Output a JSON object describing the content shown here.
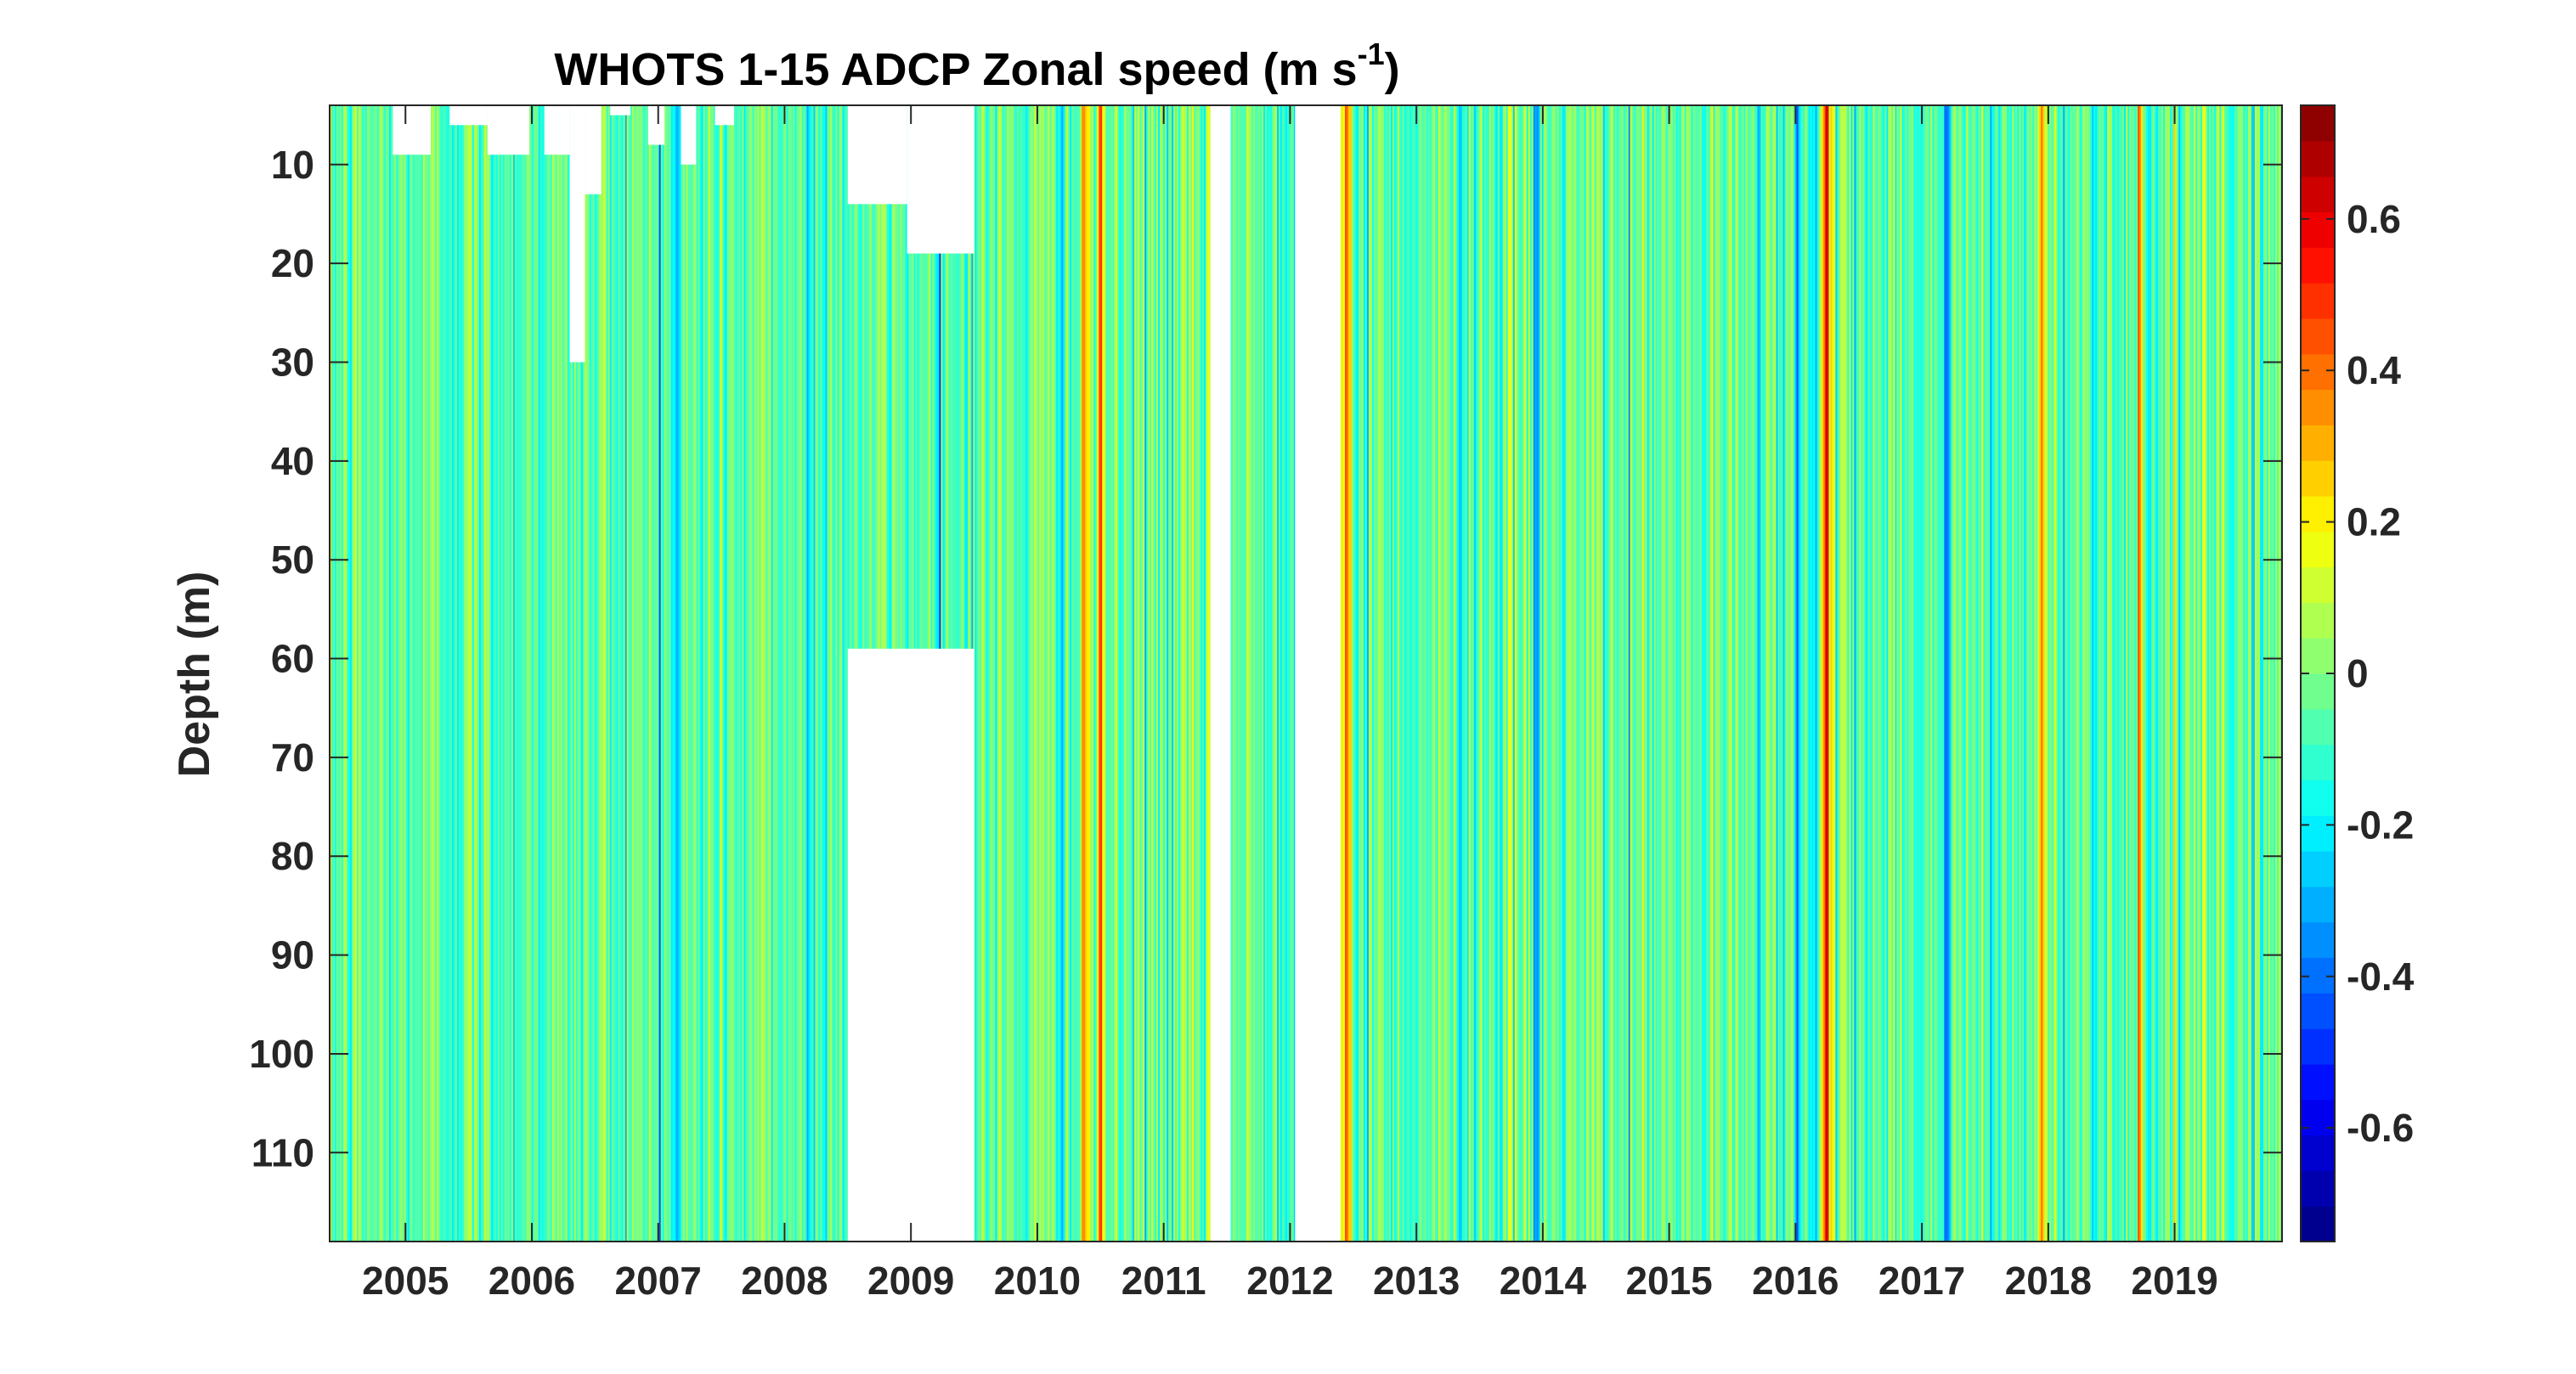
{
  "chart_data": {
    "type": "heatmap",
    "title": "WHOTS 1-15 ADCP Zonal speed (m s",
    "title_superscript": "-1",
    "title_suffix": ")",
    "xlabel": "",
    "ylabel": "Depth (m)",
    "x_range_years": [
      2004.4,
      2019.85
    ],
    "y_range_m": [
      4,
      119
    ],
    "y_reversed": true,
    "x_tick_labels": [
      "2005",
      "2006",
      "2007",
      "2008",
      "2009",
      "2010",
      "2011",
      "2012",
      "2013",
      "2014",
      "2015",
      "2016",
      "2017",
      "2018",
      "2019"
    ],
    "x_tick_values": [
      2005,
      2006,
      2007,
      2008,
      2009,
      2010,
      2011,
      2012,
      2013,
      2014,
      2015,
      2016,
      2017,
      2018,
      2019
    ],
    "y_tick_labels": [
      "10",
      "20",
      "30",
      "40",
      "50",
      "60",
      "70",
      "80",
      "90",
      "100",
      "110"
    ],
    "y_tick_values": [
      10,
      20,
      30,
      40,
      50,
      60,
      70,
      80,
      90,
      100,
      110
    ],
    "colorbar": {
      "range": [
        -0.75,
        0.75
      ],
      "tick_labels": [
        "0.6",
        "0.4",
        "0.2",
        "0",
        "-0.2",
        "-0.4",
        "-0.6"
      ],
      "tick_values": [
        0.6,
        0.4,
        0.2,
        0,
        -0.2,
        -0.4,
        -0.6
      ],
      "colormap": "jet",
      "levels": 32
    },
    "data_gaps_years": [
      [
        2008.5,
        2009.5
      ],
      [
        2011.37,
        2011.53
      ],
      [
        2012.04,
        2012.4
      ]
    ],
    "mask_2009_top_m": 59,
    "shallow_mask_2008_top_m": 14,
    "shallow_mask_2009_top_m": 19,
    "prominent_bands": [
      {
        "year": 2010.5,
        "value": 0.5
      },
      {
        "year": 2010.38,
        "value": 0.3
      },
      {
        "year": 2012.45,
        "value": 0.42
      },
      {
        "year": 2016.25,
        "value": 0.55
      },
      {
        "year": 2017.95,
        "value": 0.4
      },
      {
        "year": 2018.72,
        "value": 0.3
      },
      {
        "year": 2007.15,
        "value": -0.4
      },
      {
        "year": 2016.02,
        "value": -0.42
      },
      {
        "year": 2017.2,
        "value": -0.45
      },
      {
        "year": 2008.2,
        "value": -0.3
      },
      {
        "year": 2013.95,
        "value": -0.35
      },
      {
        "year": 2017.55,
        "value": -0.35
      }
    ],
    "background_value": -0.05,
    "value_std": 0.1,
    "grid": false,
    "legend": "none"
  }
}
